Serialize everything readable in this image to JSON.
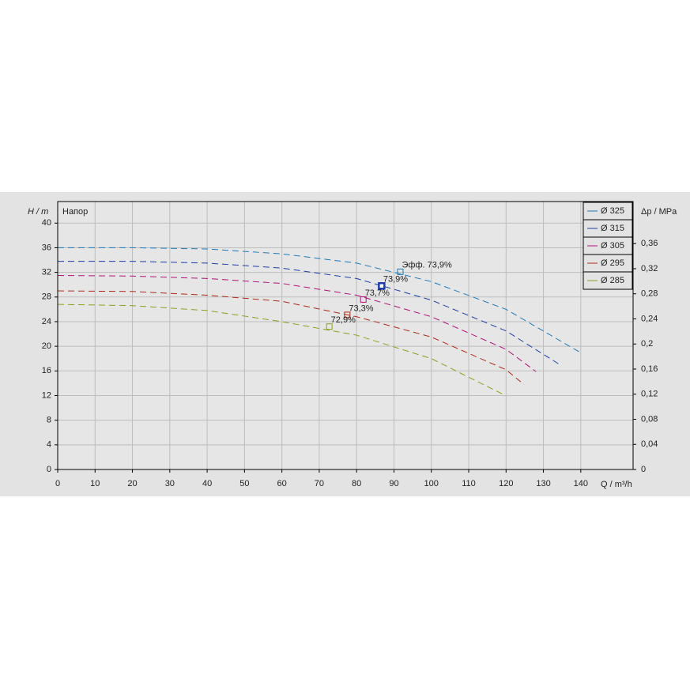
{
  "chart_data": {
    "type": "line",
    "y_label": "H / m",
    "y_title": "Напор",
    "y2_label": "Δp / MPa",
    "x_label": "Q / m³/h",
    "xlim": [
      0,
      154
    ],
    "ylim": [
      0,
      43.5
    ],
    "y2lim": [
      0,
      0.427
    ],
    "xticks": [
      0,
      10,
      20,
      30,
      40,
      50,
      60,
      70,
      80,
      90,
      100,
      110,
      120,
      130,
      140
    ],
    "yticks": [
      0,
      4,
      8,
      12,
      16,
      20,
      24,
      28,
      32,
      36,
      40
    ],
    "y2ticks": [
      0,
      {
        "value": 0.04,
        "label": "0,04"
      },
      {
        "value": 0.08,
        "label": "0,08"
      },
      {
        "value": 0.12,
        "label": "0,12"
      },
      {
        "value": 0.16,
        "label": "0,16"
      },
      {
        "value": 0.2,
        "label": "0,2"
      },
      {
        "value": 0.24,
        "label": "0,24"
      },
      {
        "value": 0.28,
        "label": "0,28"
      },
      {
        "value": 0.32,
        "label": "0,32"
      },
      {
        "value": 0.36,
        "label": "0,36"
      }
    ],
    "grid": true,
    "legend": "top-right",
    "series": [
      {
        "name": "Ø 325",
        "color": "#1f7ab8",
        "x": [
          0,
          20,
          40,
          60,
          80,
          100,
          120,
          139.6
        ],
        "values": [
          36,
          36,
          35.8,
          35,
          33.5,
          30.5,
          26,
          19.1
        ],
        "point": {
          "x": 91.7,
          "y": 32.1,
          "label": "Эфф.  73,9%"
        }
      },
      {
        "name": "Ø 315",
        "color": "#1d3ea6",
        "x": [
          0,
          20,
          40,
          60,
          80,
          100,
          120,
          134.7
        ],
        "values": [
          33.8,
          33.8,
          33.5,
          32.7,
          31,
          27.5,
          22.5,
          16.9
        ],
        "point": {
          "x": 86.7,
          "y": 29.8,
          "label": "73,9%"
        }
      },
      {
        "name": "Ø 305",
        "color": "#b0127a",
        "x": [
          0,
          20,
          40,
          60,
          80,
          100,
          120,
          128
        ],
        "values": [
          31.5,
          31.4,
          31,
          30.2,
          28.3,
          24.8,
          19.5,
          15.9
        ],
        "point": {
          "x": 81.8,
          "y": 27.6,
          "label": "73,7%"
        }
      },
      {
        "name": "Ø 295",
        "color": "#b02a1a",
        "x": [
          0,
          20,
          40,
          60,
          80,
          100,
          120,
          124.8
        ],
        "values": [
          29,
          28.9,
          28.3,
          27.3,
          24.8,
          21.5,
          16.2,
          13.8
        ],
        "point": {
          "x": 77.5,
          "y": 25.1,
          "label": "73,3%"
        }
      },
      {
        "name": "Ø 285",
        "color": "#8aa01e",
        "x": [
          0,
          20,
          40,
          60,
          80,
          100,
          119.9
        ],
        "values": [
          26.8,
          26.6,
          25.8,
          24,
          21.8,
          18,
          12
        ],
        "point": {
          "x": 72.7,
          "y": 23.2,
          "label": "72,9%"
        }
      }
    ]
  }
}
